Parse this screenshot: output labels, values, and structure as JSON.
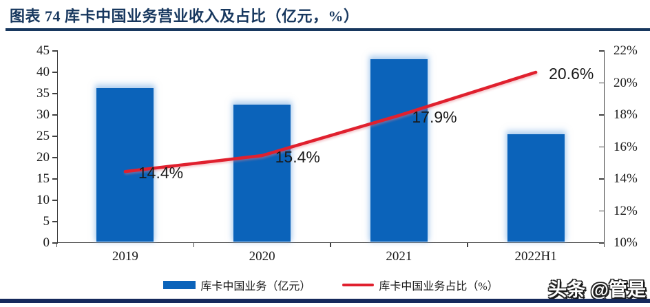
{
  "figure": {
    "title": "图表 74  库卡中国业务营业收入及占比（亿元，%）",
    "watermark": "头条 @管是"
  },
  "chart_data": {
    "type": "bar",
    "subtype": "combo-bar-line-dual-axis",
    "title": "库卡中国业务营业收入及占比（亿元，%）",
    "categories": [
      "2019",
      "2020",
      "2021",
      "2022H1"
    ],
    "series": [
      {
        "name": "库卡中国业务（亿元）",
        "type": "bar",
        "axis": "left",
        "values": [
          36.0,
          32.1,
          42.8,
          25.2
        ]
      },
      {
        "name": "库卡中国业务占比（%）",
        "type": "line",
        "axis": "right",
        "values": [
          14.4,
          15.4,
          17.9,
          20.6
        ],
        "point_labels": [
          "14.4%",
          "15.4%",
          "17.9%",
          "20.6%"
        ]
      }
    ],
    "left_axis": {
      "min": 0,
      "max": 45,
      "step": 5,
      "tick_labels": [
        "45",
        "40",
        "35",
        "30",
        "25",
        "20",
        "15",
        "10",
        "5",
        "0"
      ]
    },
    "right_axis": {
      "min": 10,
      "max": 22,
      "step": 2,
      "tick_labels": [
        "22%",
        "20%",
        "18%",
        "16%",
        "14%",
        "12%",
        "10%"
      ]
    },
    "grid": false,
    "legend_position": "bottom"
  },
  "legend": {
    "bar_label": "库卡中国业务（亿元）",
    "line_label": "库卡中国业务占比（%）"
  },
  "colors": {
    "bar": "#0B63BA",
    "line": "#E0202E",
    "title": "#17375E",
    "rule": "#16295C",
    "axis": "#404040",
    "text": "#1A1A1A"
  }
}
